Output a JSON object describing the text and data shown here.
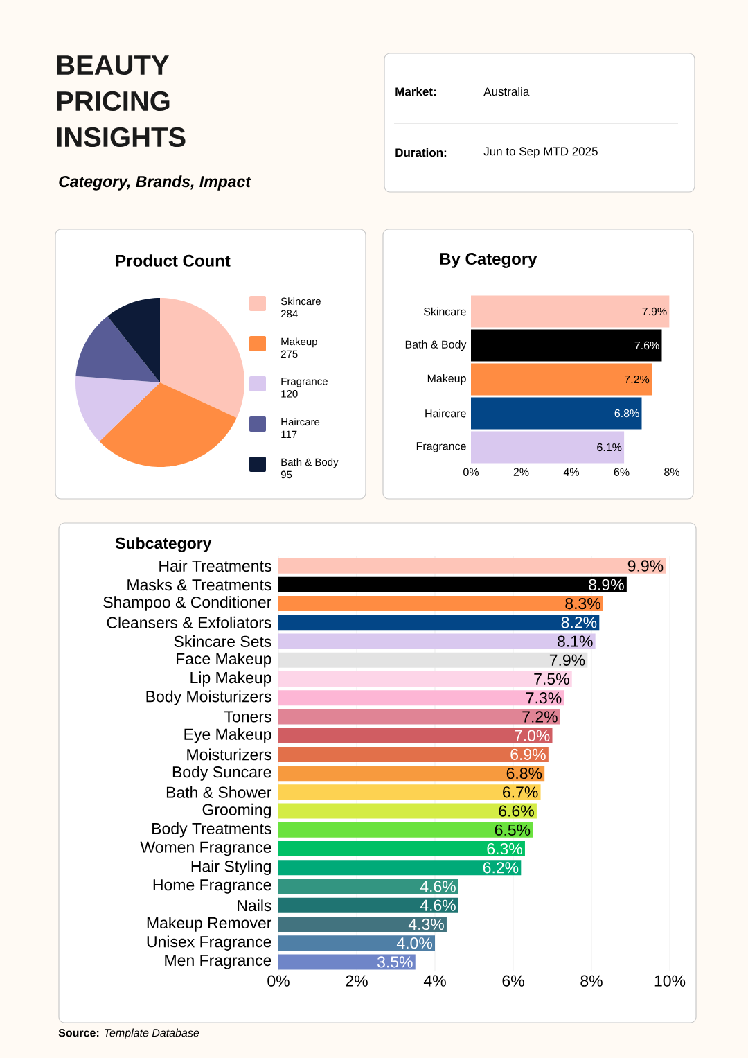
{
  "chart_data": [
    {
      "type": "other",
      "title": "BEAUTY PRICING INSIGHTS",
      "subtitle": "Category, Brands, Impact",
      "annotations": [
        "Market:",
        "Australia",
        "Duration:",
        "Jun to Sep MTD 2025"
      ]
    },
    {
      "type": "pie",
      "title": "Product Count",
      "categories": [
        "Skincare",
        "Makeup",
        "Fragrance",
        "Haircare",
        "Bath & Body"
      ],
      "values": [
        284,
        275,
        120,
        117,
        95
      ],
      "colors": [
        "#fec5b8",
        "#ff8c42",
        "#d9c8ef",
        "#585c96",
        "#0d1b38"
      ],
      "data_labels": true,
      "legend": "right"
    },
    {
      "type": "bar",
      "orientation": "horizontal",
      "title": "By Category",
      "categories": [
        "Skincare",
        "Bath & Body",
        "Makeup",
        "Haircare",
        "Fragrance"
      ],
      "values": [
        7.9,
        7.6,
        7.2,
        6.8,
        6.1
      ],
      "value_labels": [
        "7.9%",
        "7.6%",
        "7.2%",
        "6.8%",
        "6.1%"
      ],
      "colors": [
        "#fec5b8",
        "#000000",
        "#ff8c42",
        "#034687",
        "#d9c8ef"
      ],
      "xlim": [
        0,
        8
      ],
      "xticks": [
        {
          "value": 0,
          "label": "0%"
        },
        {
          "value": 2,
          "label": "2%"
        },
        {
          "value": 4,
          "label": "4%"
        },
        {
          "value": 6,
          "label": "6%"
        },
        {
          "value": 8,
          "label": "8%"
        }
      ]
    },
    {
      "type": "bar",
      "orientation": "horizontal",
      "title": "Subcategory",
      "categories": [
        "Hair Treatments",
        "Masks & Treatments",
        "Shampoo & Conditioner",
        "Cleansers & Exfoliators",
        "Skincare Sets",
        "Face Makeup",
        "Lip Makeup",
        "Body Moisturizers",
        "Toners",
        "Eye Makeup",
        "Moisturizers",
        "Body Suncare",
        "Bath & Shower",
        "Grooming",
        "Body Treatments",
        "Women Fragrance",
        "Hair Styling",
        "Home Fragrance",
        "Nails",
        "Makeup Remover",
        "Unisex Fragrance",
        "Men Fragrance"
      ],
      "values": [
        9.9,
        8.9,
        8.3,
        8.2,
        8.1,
        7.9,
        7.5,
        7.3,
        7.2,
        7.0,
        6.9,
        6.8,
        6.7,
        6.6,
        6.5,
        6.3,
        6.2,
        4.6,
        4.6,
        4.3,
        4.0,
        3.5
      ],
      "value_labels": [
        "9.9%",
        "8.9%",
        "8.3%",
        "8.2%",
        "8.1%",
        "7.9%",
        "7.5%",
        "7.3%",
        "7.2%",
        "7.0%",
        "6.9%",
        "6.8%",
        "6.7%",
        "6.6%",
        "6.5%",
        "6.3%",
        "6.2%",
        "4.6%",
        "4.6%",
        "4.3%",
        "4.0%",
        "3.5%"
      ],
      "colors": [
        "#fec5b8",
        "#000000",
        "#ff8c42",
        "#034687",
        "#d9c8ef",
        "#e3e3e3",
        "#fdd5e8",
        "#fdb6d5",
        "#e08495",
        "#d05d62",
        "#e2704a",
        "#f79a3e",
        "#fdd251",
        "#d4ec45",
        "#6ae23e",
        "#00c065",
        "#00aa78",
        "#339581",
        "#1f7472",
        "#42737f",
        "#4f7fa6",
        "#6f85c8"
      ],
      "xlim": [
        0,
        10
      ],
      "xticks": [
        {
          "value": 0,
          "label": "0%"
        },
        {
          "value": 2,
          "label": "2%"
        },
        {
          "value": 4,
          "label": "4%"
        },
        {
          "value": 6,
          "label": "6%"
        },
        {
          "value": 8,
          "label": "8%"
        },
        {
          "value": 10,
          "label": "10%"
        }
      ],
      "grid": "x",
      "annotations": [
        "**Source:** *Template Database*"
      ]
    }
  ]
}
